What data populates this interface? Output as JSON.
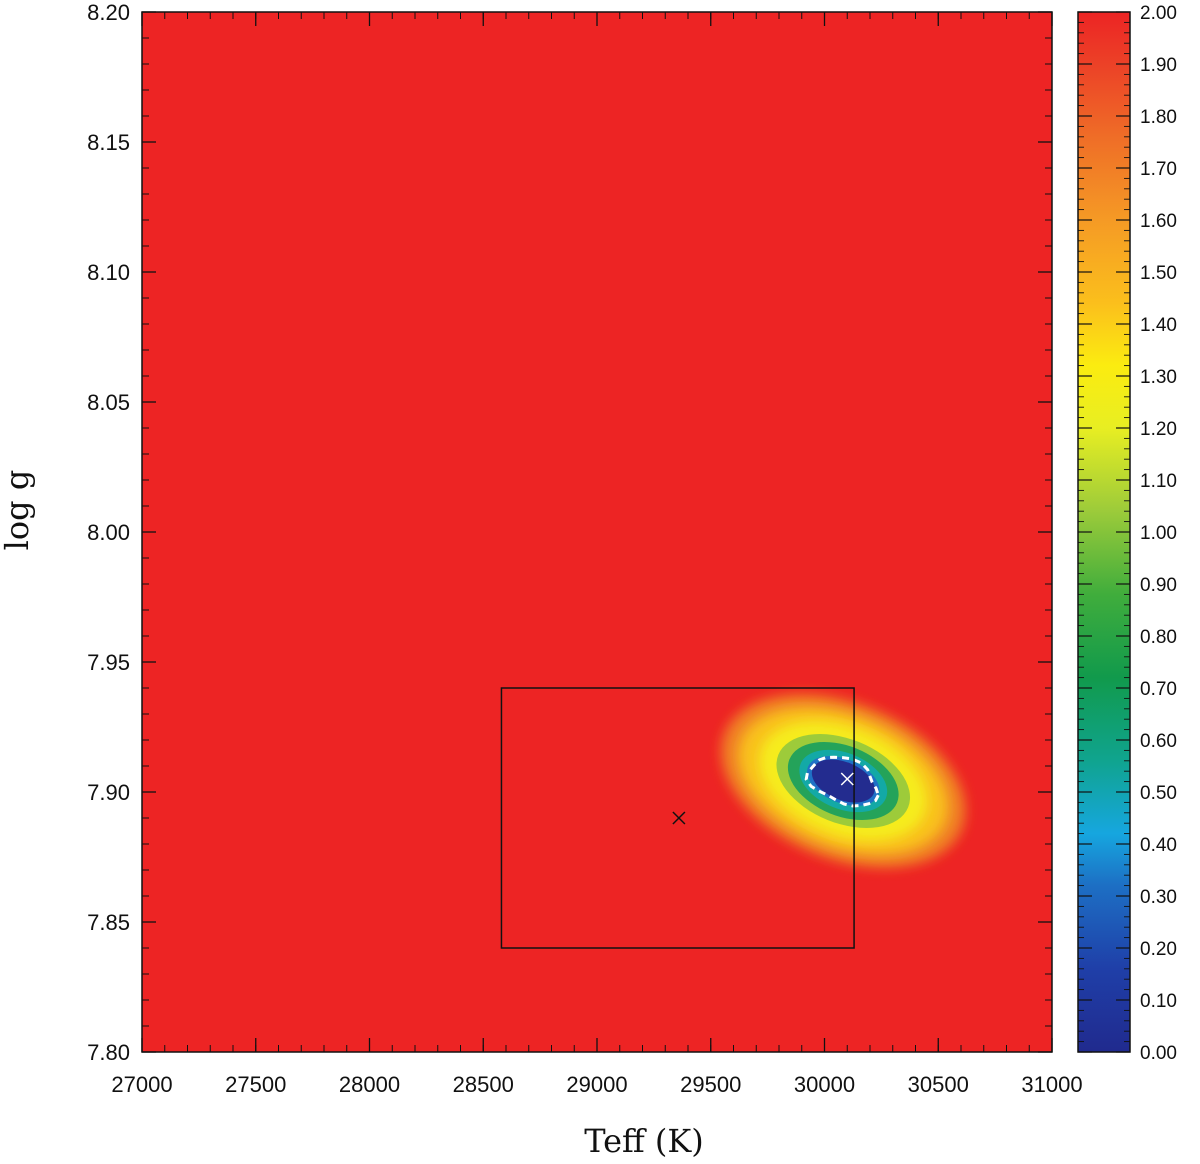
{
  "chart_data": {
    "type": "heatmap",
    "title": "",
    "xlabel": "Teff (K)",
    "ylabel": "log g",
    "xlim": [
      27000,
      31000
    ],
    "ylim": [
      7.8,
      8.2
    ],
    "x_ticks": [
      27000,
      27500,
      28000,
      28500,
      29000,
      29500,
      30000,
      30500,
      31000
    ],
    "x_tick_labels": [
      "27000",
      "27500",
      "28000",
      "28500",
      "29000",
      "29500",
      "30000",
      "30500",
      "31000"
    ],
    "y_ticks": [
      7.8,
      7.85,
      7.9,
      7.95,
      8.0,
      8.05,
      8.1,
      8.15,
      8.2
    ],
    "y_tick_labels": [
      "7.80",
      "7.85",
      "7.90",
      "7.95",
      "8.00",
      "8.05",
      "8.10",
      "8.15",
      "8.20"
    ],
    "colorbar": {
      "range": [
        0.0,
        2.0
      ],
      "ticks": [
        0.0,
        0.1,
        0.2,
        0.3,
        0.4,
        0.5,
        0.6,
        0.7,
        0.8,
        0.9,
        1.0,
        1.1,
        1.2,
        1.3,
        1.4,
        1.5,
        1.6,
        1.7,
        1.8,
        1.9,
        2.0
      ],
      "tick_labels": [
        "0.00",
        "0.10",
        "0.20",
        "0.30",
        "0.40",
        "0.50",
        "0.60",
        "0.70",
        "0.80",
        "0.90",
        "1.00",
        "1.10",
        "1.20",
        "1.30",
        "1.40",
        "1.50",
        "1.60",
        "1.70",
        "1.80",
        "1.90",
        "2.00"
      ],
      "colormap": "rainbow (blue-cyan-green-yellow-orange-red)"
    },
    "background_value": 2.0,
    "minimum": {
      "teff": 30100,
      "logg": 7.905,
      "value": 0.0
    },
    "rectangle": {
      "teff": [
        28580,
        30130
      ],
      "logg": [
        7.84,
        7.94
      ]
    },
    "markers": [
      {
        "teff": 29360,
        "logg": 7.89,
        "color": "#111111"
      },
      {
        "teff": 30100,
        "logg": 7.905,
        "color": "#ffffff"
      }
    ],
    "contour": {
      "style": "dashed",
      "color": "#ffffff",
      "level": 0.1
    },
    "grid": false
  }
}
